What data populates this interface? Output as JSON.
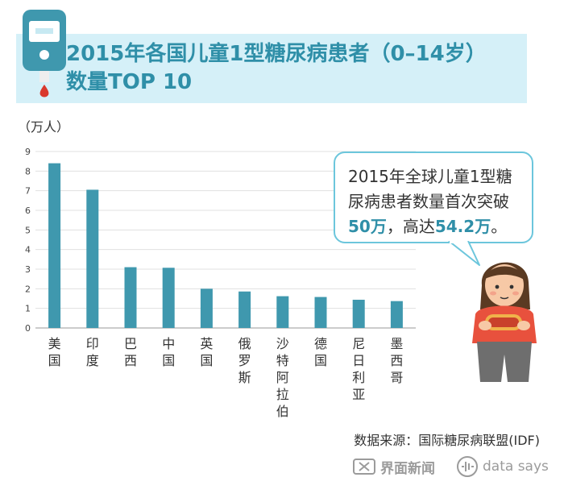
{
  "title_line1": "2015年各国儿童1型糖尿病患者（0–14岁）",
  "title_line2": "数量TOP 10",
  "colors": {
    "bar": "#3f98ae",
    "title": "#2f8fa8",
    "banner": "#d5f0f8",
    "grid": "#e0e0e0"
  },
  "callout": {
    "line1": "2015年全球儿童1型糖",
    "line2": "尿病患者数量首次突破",
    "highlight1": "50万",
    "middle": "，高达",
    "highlight2": "54.2万",
    "end": "。"
  },
  "source": "数据来源：国际糖尿病联盟(IDF)",
  "logos": {
    "brand1": "界面新闻",
    "brand2": "data says"
  },
  "chart_data": {
    "type": "bar",
    "unit_label": "（万人）",
    "categories": [
      "美国",
      "印度",
      "巴西",
      "中国",
      "英国",
      "俄罗斯",
      "沙特阿拉伯",
      "德国",
      "尼日利亚",
      "墨西哥"
    ],
    "values": [
      8.4,
      7.05,
      3.1,
      3.07,
      2.0,
      1.86,
      1.62,
      1.58,
      1.44,
      1.37
    ],
    "ylim": [
      0,
      9
    ],
    "yticks": [
      0,
      1,
      2,
      3,
      4,
      5,
      6,
      7,
      8,
      9
    ],
    "grid": true
  }
}
